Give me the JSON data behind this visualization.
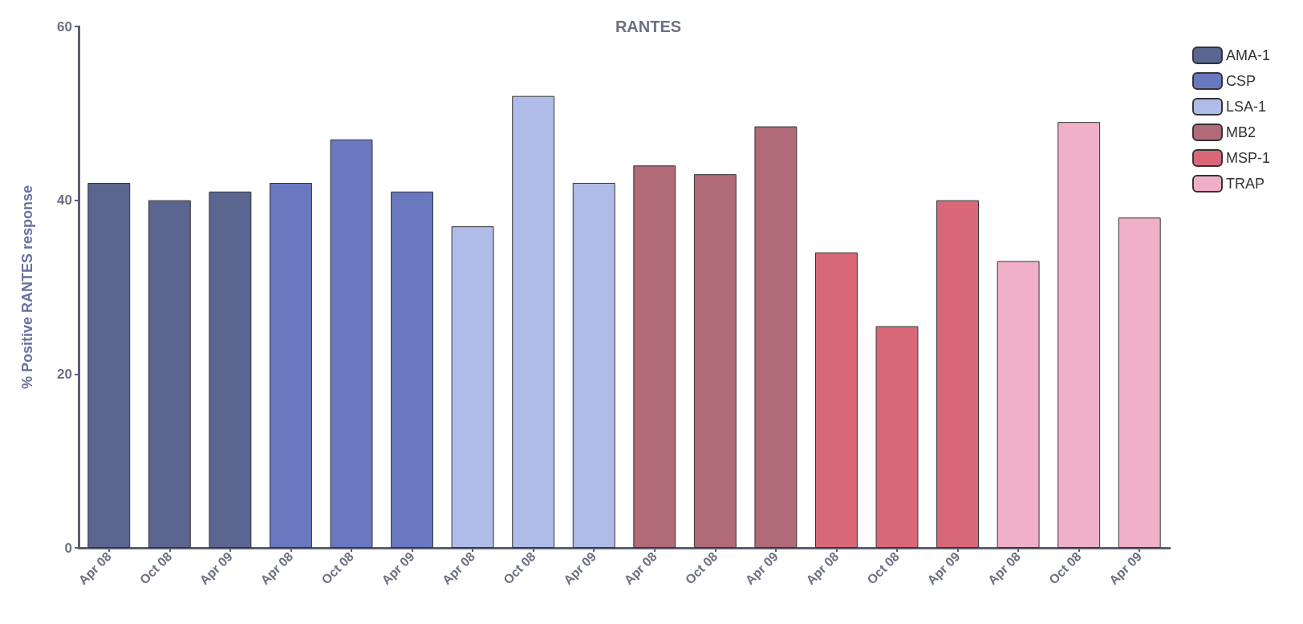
{
  "chart_data": {
    "type": "bar",
    "title": "RANTES",
    "ylabel": "% Positive RANTES response",
    "categories": [
      "Apr 08",
      "Oct 08",
      "Apr 09",
      "Apr 08",
      "Oct 08",
      "Apr 09",
      "Apr 08",
      "Oct 08",
      "Apr 09",
      "Apr 08",
      "Oct 08",
      "Apr 09",
      "Apr 08",
      "Oct 08",
      "Apr 09",
      "Apr 08",
      "Oct 08",
      "Apr 09"
    ],
    "series": [
      {
        "name": "AMA-1",
        "color": "#5a6590",
        "values": [
          42,
          40,
          41,
          null,
          null,
          null,
          null,
          null,
          null,
          null,
          null,
          null,
          null,
          null,
          null,
          null,
          null,
          null
        ]
      },
      {
        "name": "CSP",
        "color": "#6a78c0",
        "values": [
          null,
          null,
          null,
          42,
          47,
          41,
          null,
          null,
          null,
          null,
          null,
          null,
          null,
          null,
          null,
          null,
          null,
          null
        ]
      },
      {
        "name": "LSA-1",
        "color": "#b0bce8",
        "values": [
          null,
          null,
          null,
          null,
          null,
          null,
          37,
          52,
          42,
          null,
          null,
          null,
          null,
          null,
          null,
          null,
          null,
          null
        ]
      },
      {
        "name": "MB2",
        "color": "#b06a78",
        "values": [
          null,
          null,
          null,
          null,
          null,
          null,
          null,
          null,
          null,
          44,
          43,
          48.5,
          null,
          null,
          null,
          null,
          null,
          null
        ]
      },
      {
        "name": "MSP-1",
        "color": "#d86878",
        "values": [
          null,
          null,
          null,
          null,
          null,
          null,
          null,
          null,
          null,
          null,
          null,
          null,
          34,
          25.5,
          40,
          null,
          null,
          null
        ]
      },
      {
        "name": "TRAP",
        "color": "#f0b0c8",
        "values": [
          null,
          null,
          null,
          null,
          null,
          null,
          null,
          null,
          null,
          null,
          null,
          null,
          null,
          null,
          null,
          33,
          49,
          38
        ]
      }
    ],
    "ylim": [
      0,
      60
    ],
    "yticks": [
      0,
      20,
      40,
      60
    ],
    "grid": false,
    "legend": "top right"
  }
}
